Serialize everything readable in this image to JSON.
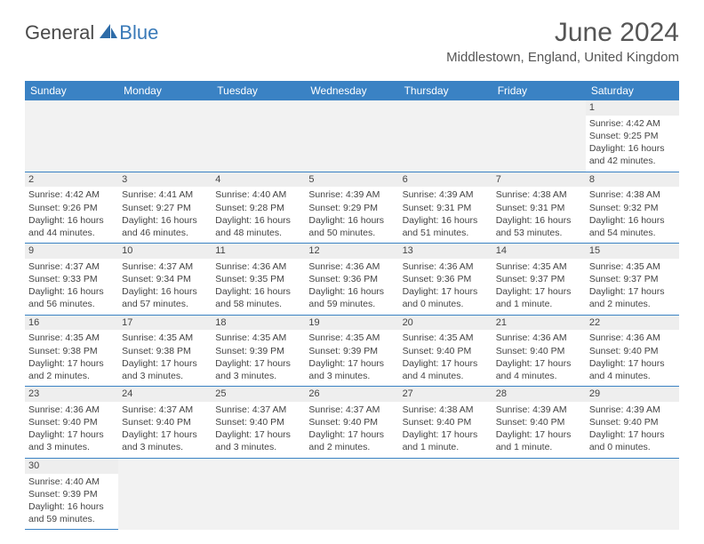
{
  "logo": {
    "part1": "General",
    "part2": "Blue"
  },
  "title": "June 2024",
  "location": "Middlestown, England, United Kingdom",
  "weekdays": [
    "Sunday",
    "Monday",
    "Tuesday",
    "Wednesday",
    "Thursday",
    "Friday",
    "Saturday"
  ],
  "colors": {
    "header_bg": "#3a82c4",
    "header_text": "#ffffff",
    "daynum_bg": "#eeeeee",
    "border": "#3a82c4",
    "logo_blue": "#3a7ab8",
    "text": "#444444"
  },
  "days": {
    "1": {
      "sunrise": "4:42 AM",
      "sunset": "9:25 PM",
      "daylight": "16 hours and 42 minutes."
    },
    "2": {
      "sunrise": "4:42 AM",
      "sunset": "9:26 PM",
      "daylight": "16 hours and 44 minutes."
    },
    "3": {
      "sunrise": "4:41 AM",
      "sunset": "9:27 PM",
      "daylight": "16 hours and 46 minutes."
    },
    "4": {
      "sunrise": "4:40 AM",
      "sunset": "9:28 PM",
      "daylight": "16 hours and 48 minutes."
    },
    "5": {
      "sunrise": "4:39 AM",
      "sunset": "9:29 PM",
      "daylight": "16 hours and 50 minutes."
    },
    "6": {
      "sunrise": "4:39 AM",
      "sunset": "9:31 PM",
      "daylight": "16 hours and 51 minutes."
    },
    "7": {
      "sunrise": "4:38 AM",
      "sunset": "9:31 PM",
      "daylight": "16 hours and 53 minutes."
    },
    "8": {
      "sunrise": "4:38 AM",
      "sunset": "9:32 PM",
      "daylight": "16 hours and 54 minutes."
    },
    "9": {
      "sunrise": "4:37 AM",
      "sunset": "9:33 PM",
      "daylight": "16 hours and 56 minutes."
    },
    "10": {
      "sunrise": "4:37 AM",
      "sunset": "9:34 PM",
      "daylight": "16 hours and 57 minutes."
    },
    "11": {
      "sunrise": "4:36 AM",
      "sunset": "9:35 PM",
      "daylight": "16 hours and 58 minutes."
    },
    "12": {
      "sunrise": "4:36 AM",
      "sunset": "9:36 PM",
      "daylight": "16 hours and 59 minutes."
    },
    "13": {
      "sunrise": "4:36 AM",
      "sunset": "9:36 PM",
      "daylight": "17 hours and 0 minutes."
    },
    "14": {
      "sunrise": "4:35 AM",
      "sunset": "9:37 PM",
      "daylight": "17 hours and 1 minute."
    },
    "15": {
      "sunrise": "4:35 AM",
      "sunset": "9:37 PM",
      "daylight": "17 hours and 2 minutes."
    },
    "16": {
      "sunrise": "4:35 AM",
      "sunset": "9:38 PM",
      "daylight": "17 hours and 2 minutes."
    },
    "17": {
      "sunrise": "4:35 AM",
      "sunset": "9:38 PM",
      "daylight": "17 hours and 3 minutes."
    },
    "18": {
      "sunrise": "4:35 AM",
      "sunset": "9:39 PM",
      "daylight": "17 hours and 3 minutes."
    },
    "19": {
      "sunrise": "4:35 AM",
      "sunset": "9:39 PM",
      "daylight": "17 hours and 3 minutes."
    },
    "20": {
      "sunrise": "4:35 AM",
      "sunset": "9:40 PM",
      "daylight": "17 hours and 4 minutes."
    },
    "21": {
      "sunrise": "4:36 AM",
      "sunset": "9:40 PM",
      "daylight": "17 hours and 4 minutes."
    },
    "22": {
      "sunrise": "4:36 AM",
      "sunset": "9:40 PM",
      "daylight": "17 hours and 4 minutes."
    },
    "23": {
      "sunrise": "4:36 AM",
      "sunset": "9:40 PM",
      "daylight": "17 hours and 3 minutes."
    },
    "24": {
      "sunrise": "4:37 AM",
      "sunset": "9:40 PM",
      "daylight": "17 hours and 3 minutes."
    },
    "25": {
      "sunrise": "4:37 AM",
      "sunset": "9:40 PM",
      "daylight": "17 hours and 3 minutes."
    },
    "26": {
      "sunrise": "4:37 AM",
      "sunset": "9:40 PM",
      "daylight": "17 hours and 2 minutes."
    },
    "27": {
      "sunrise": "4:38 AM",
      "sunset": "9:40 PM",
      "daylight": "17 hours and 1 minute."
    },
    "28": {
      "sunrise": "4:39 AM",
      "sunset": "9:40 PM",
      "daylight": "17 hours and 1 minute."
    },
    "29": {
      "sunrise": "4:39 AM",
      "sunset": "9:40 PM",
      "daylight": "17 hours and 0 minutes."
    },
    "30": {
      "sunrise": "4:40 AM",
      "sunset": "9:39 PM",
      "daylight": "16 hours and 59 minutes."
    }
  },
  "labels": {
    "sunrise": "Sunrise:",
    "sunset": "Sunset:",
    "daylight": "Daylight:"
  },
  "layout": {
    "first_day_column": 6,
    "num_days": 30,
    "columns": 7
  }
}
